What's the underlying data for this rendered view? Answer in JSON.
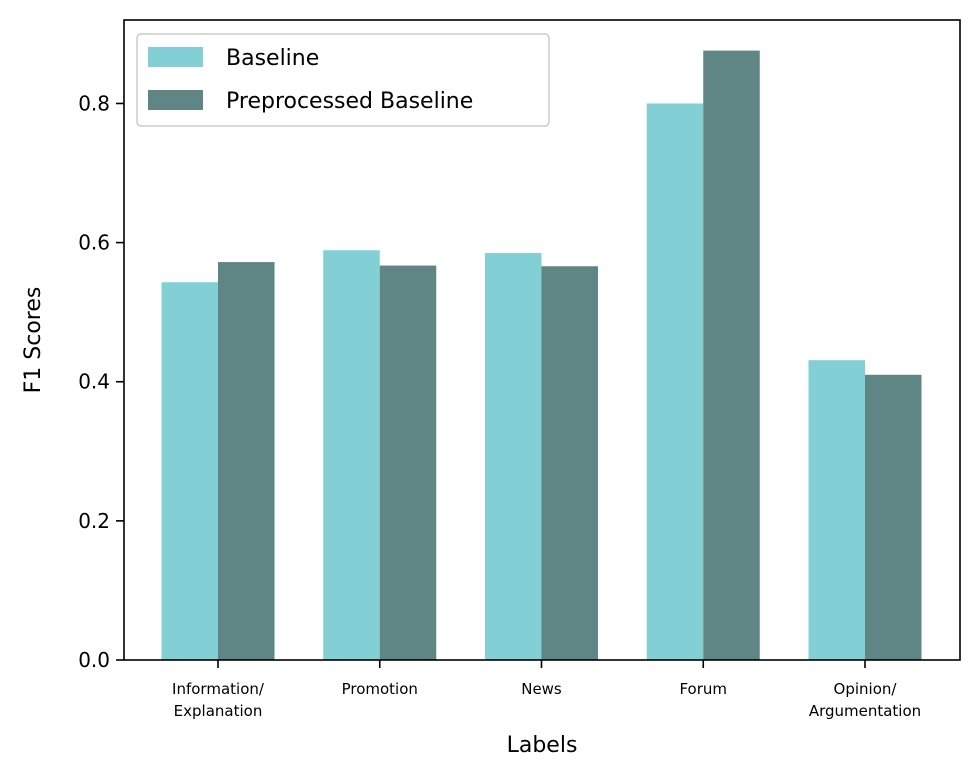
{
  "chart_data": {
    "type": "bar",
    "categories": [
      [
        "Information/",
        "Explanation"
      ],
      [
        "Promotion"
      ],
      [
        "News"
      ],
      [
        "Forum"
      ],
      [
        "Opinion/",
        "Argumentation"
      ]
    ],
    "series": [
      {
        "name": "Baseline",
        "color": "#82cfd6",
        "values": [
          0.543,
          0.589,
          0.585,
          0.8,
          0.431
        ]
      },
      {
        "name": "Preprocessed Baseline",
        "color": "#5f8585",
        "values": [
          0.572,
          0.567,
          0.566,
          0.876,
          0.41
        ]
      }
    ],
    "xlabel": "Labels",
    "ylabel": "F1 Scores",
    "ylim": [
      0,
      0.92
    ],
    "yticks": [
      0.0,
      0.2,
      0.4,
      0.6,
      0.8
    ],
    "ytick_labels": [
      "0.0",
      "0.2",
      "0.4",
      "0.6",
      "0.8"
    ],
    "legend": {
      "position": "top-left"
    },
    "grid": false
  }
}
